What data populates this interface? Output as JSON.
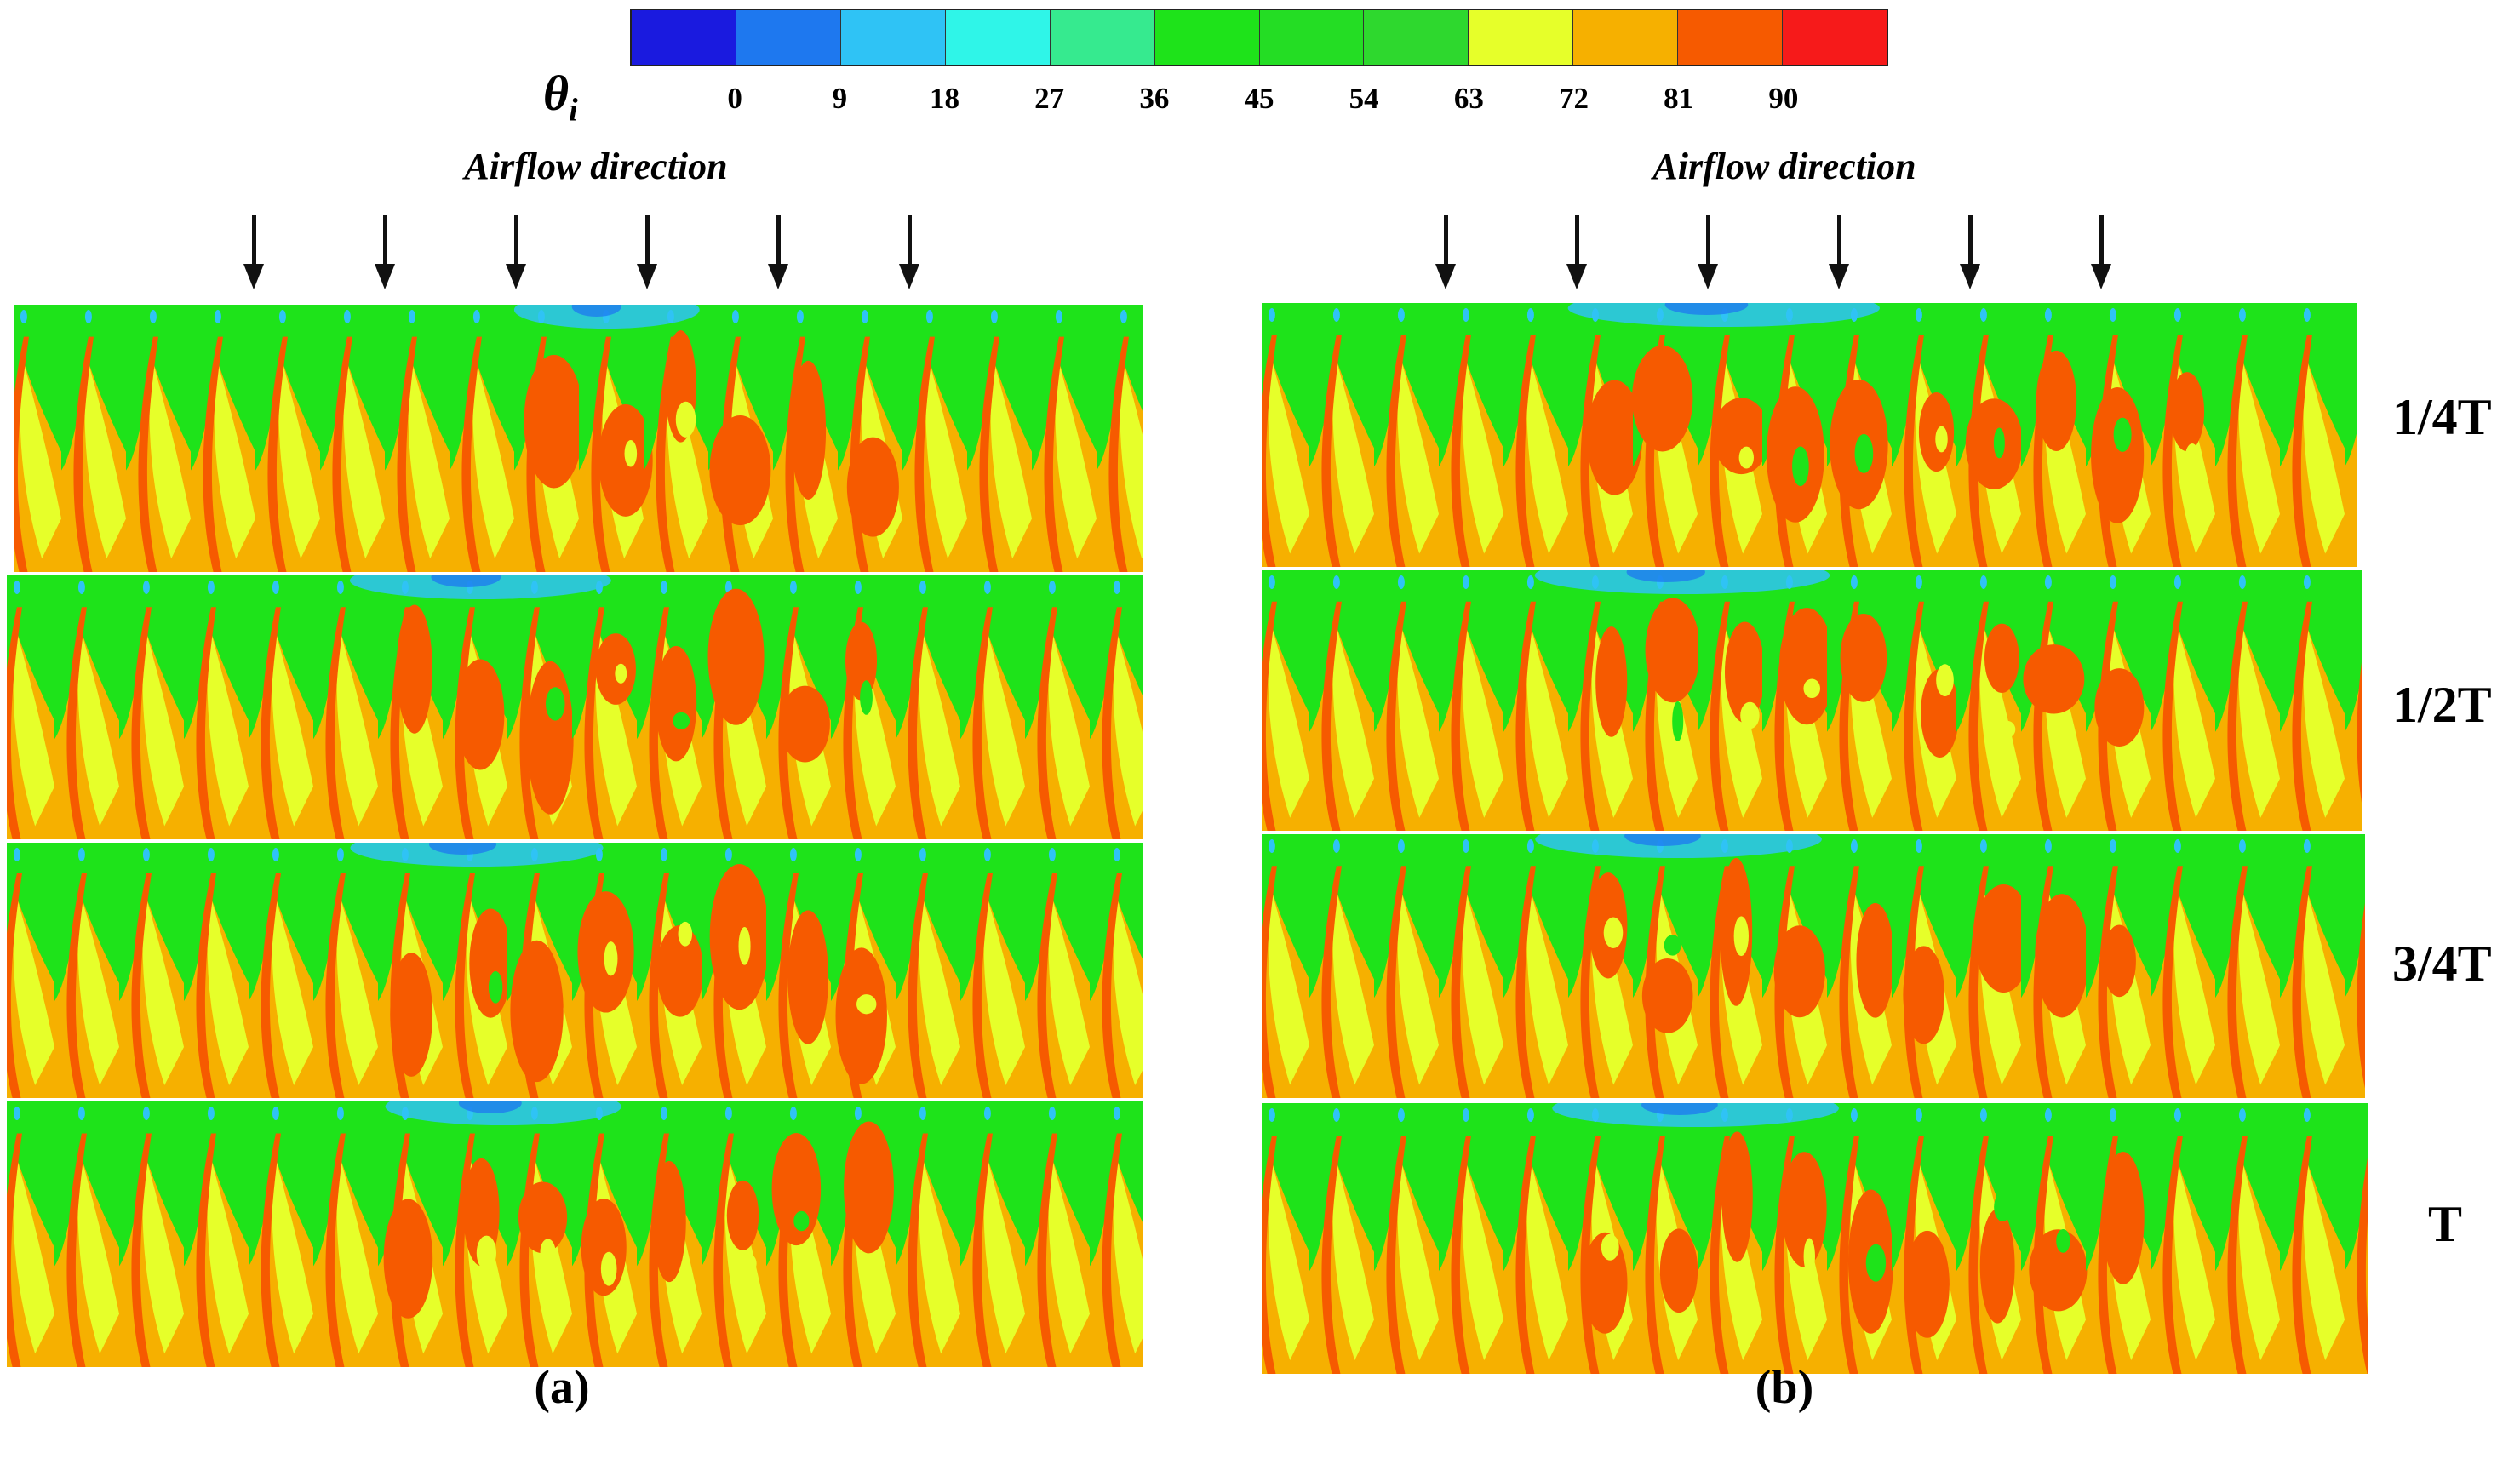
{
  "colorbar": {
    "symbol": "θ",
    "subscript": "i",
    "colors": [
      "#1a1adf",
      "#1e78ef",
      "#2fc3f5",
      "#2ff5e8",
      "#36ea8f",
      "#1ee31a",
      "#24dd24",
      "#2ed82e",
      "#e6ff2a",
      "#f6b000",
      "#f65a00",
      "#f61a1a"
    ],
    "ticks": [
      "0",
      "9",
      "18",
      "27",
      "36",
      "45",
      "54",
      "63",
      "72",
      "81",
      "90"
    ]
  },
  "left": {
    "airflow_label": "Airflow direction",
    "caption": "(a)"
  },
  "right": {
    "airflow_label": "Airflow direction",
    "caption": "(b)"
  },
  "time_labels": [
    "1/4T",
    "1/2T",
    "3/4T",
    "T"
  ],
  "palette": {
    "green": "#1ee31a",
    "yellow": "#e6ff2a",
    "orange": "#f6b000",
    "red_orange": "#f65a00",
    "cyan": "#2fc3f5",
    "blue": "#1e78ef"
  }
}
